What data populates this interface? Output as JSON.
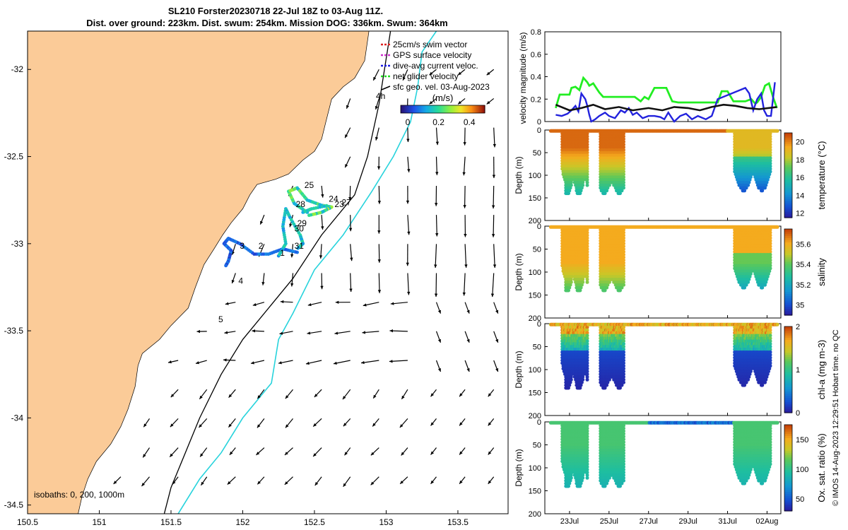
{
  "title": {
    "line1": "SL210 Forster20230718 22-Jul 18Z to 03-Aug 11Z.",
    "line2": "Dist. over ground: 223km. Dist. swum: 254km. Mission DOG: 336km. Swum: 364km"
  },
  "credit": "© IMOS 14-Aug-2023 12:29:51 Hobart time. no QC",
  "colors": {
    "land": "#fbcb98",
    "sea": "#ffffff",
    "isobath_200": "#000000",
    "isobath_1000": "#27d3dc",
    "arrow": "#000000",
    "gps_legend": "#cc33cc",
    "dive_avg_legend": "#1c1ce0",
    "net_legend": "#22dd22",
    "swim_legend": "#dd2222",
    "line_green": "#22ee22",
    "line_blue": "#2222dd",
    "line_black": "#111111"
  },
  "map": {
    "x_ticks": [
      "150.5",
      "151",
      "151.5",
      "152",
      "152.5",
      "153",
      "153.5"
    ],
    "y_ticks": [
      "-32",
      "-32.5",
      "-33",
      "-33.5",
      "-34",
      "-34.5"
    ],
    "legend": [
      {
        "label": "25cm/s swim vector",
        "icon": "red-dash"
      },
      {
        "label": "GPS surface velocity",
        "icon": "magenta-dash"
      },
      {
        "label": "dive-avg current veloc.",
        "icon": "blue-dash"
      },
      {
        "label": "net glider velocity",
        "icon": "green-dash"
      },
      {
        "label": "sfc geo. vel. 03-Aug-2023",
        "icon": "black-arrow"
      }
    ],
    "colorbar_unit": "(m/s)",
    "colorbar_ticks": [
      "0",
      "0.2",
      "0.4"
    ],
    "label_4h": "4h",
    "isobaths_text": "isobaths: 0, 200, 1000m",
    "track_day_labels": [
      "1",
      "2",
      "3",
      "4",
      "5",
      "25",
      "27",
      "28",
      "29",
      "30",
      "31",
      "23",
      "24"
    ]
  },
  "panels": {
    "velocity": {
      "ylabel": "velocity magnitude (m/s)",
      "y_ticks": [
        "0",
        "0.2",
        "0.4",
        "0.6",
        "0.8"
      ]
    },
    "temperature": {
      "ylabel": "Depth (m)",
      "cbar_label": "temperature (°C)",
      "cbar_ticks": [
        "12",
        "14",
        "16",
        "18",
        "20"
      ],
      "y_ticks": [
        "0",
        "50",
        "100",
        "150",
        "200"
      ]
    },
    "salinity": {
      "ylabel": "Depth (m)",
      "cbar_label": "salinity",
      "cbar_ticks": [
        "35",
        "35.2",
        "35.4",
        "35.6"
      ],
      "y_ticks": [
        "0",
        "50",
        "100",
        "150",
        "200"
      ]
    },
    "chla": {
      "ylabel": "Depth (m)",
      "cbar_label": "chl-a (mg m-3)",
      "cbar_ticks": [
        "0",
        "1",
        "2"
      ],
      "y_ticks": [
        "0",
        "50",
        "100",
        "150",
        "200"
      ]
    },
    "oxygen": {
      "ylabel": "Depth (m)",
      "cbar_label": "Ox. sat. ratio (%)",
      "cbar_ticks": [
        "50",
        "100",
        "150"
      ],
      "y_ticks": [
        "0",
        "50",
        "100",
        "150",
        "200"
      ]
    },
    "x_ticks": [
      "23Jul",
      "25Jul",
      "27Jul",
      "29Jul",
      "31Jul",
      "02Aug"
    ]
  },
  "chart_data": [
    {
      "type": "map",
      "description_kind": "glider track map with surface geostrophic velocity arrows",
      "xlim": [
        150.5,
        153.85
      ],
      "ylim": [
        -34.55,
        -31.78
      ],
      "x_ticks": [
        150.5,
        151,
        151.5,
        152,
        152.5,
        153,
        153.5
      ],
      "y_ticks": [
        -32,
        -32.5,
        -33,
        -33.5,
        -34,
        -34.5
      ],
      "isobaths_m": [
        0,
        200,
        1000
      ]
    },
    {
      "type": "line",
      "ylim": [
        0,
        0.8
      ],
      "x_days_since_jul22": [
        0,
        11.5
      ],
      "series": [
        {
          "name": "net glider velocity",
          "values": [
            [
              0.3,
              0.12
            ],
            [
              0.5,
              0.24
            ],
            [
              1.0,
              0.24
            ],
            [
              1.1,
              0.3
            ],
            [
              1.3,
              0.31
            ],
            [
              1.5,
              0.28
            ],
            [
              1.7,
              0.39
            ],
            [
              1.9,
              0.35
            ],
            [
              2.0,
              0.32
            ],
            [
              2.2,
              0.34
            ],
            [
              2.5,
              0.26
            ],
            [
              2.7,
              0.22
            ],
            [
              3.0,
              0.22
            ],
            [
              3.4,
              0.22
            ],
            [
              3.7,
              0.22
            ],
            [
              4.0,
              0.22
            ],
            [
              4.3,
              0.22
            ],
            [
              4.6,
              0.18
            ],
            [
              4.8,
              0.22
            ],
            [
              5.0,
              0.2
            ],
            [
              5.3,
              0.3
            ],
            [
              5.6,
              0.3
            ],
            [
              5.9,
              0.3
            ],
            [
              6.2,
              0.18
            ],
            [
              6.5,
              0.17
            ],
            [
              6.8,
              0.17
            ],
            [
              7.0,
              0.17
            ],
            [
              8.5,
              0.17
            ],
            [
              8.7,
              0.27
            ],
            [
              9.0,
              0.27
            ],
            [
              9.3,
              0.18
            ],
            [
              9.6,
              0.18
            ],
            [
              9.9,
              0.18
            ],
            [
              10.2,
              0.2
            ],
            [
              10.4,
              0.16
            ],
            [
              10.5,
              0.17
            ],
            [
              10.7,
              0.22
            ],
            [
              10.9,
              0.32
            ],
            [
              11.1,
              0.34
            ],
            [
              11.3,
              0.22
            ],
            [
              11.5,
              0.12
            ]
          ]
        },
        {
          "name": "dive-avg current veloc.",
          "values": [
            [
              0.3,
              0.06
            ],
            [
              0.6,
              0.05
            ],
            [
              0.9,
              0.07
            ],
            [
              1.1,
              0.1
            ],
            [
              1.3,
              0.14
            ],
            [
              1.45,
              0.09
            ],
            [
              1.6,
              0.25
            ],
            [
              1.8,
              0.2
            ],
            [
              1.9,
              0.14
            ],
            [
              2.0,
              0.06
            ],
            [
              2.1,
              0.0
            ],
            [
              2.3,
              0.02
            ],
            [
              2.5,
              0.05
            ],
            [
              2.8,
              0.08
            ],
            [
              3.0,
              0.05
            ],
            [
              3.3,
              0.03
            ],
            [
              3.6,
              0.1
            ],
            [
              3.8,
              0.08
            ],
            [
              4.0,
              0.12
            ],
            [
              4.2,
              0.06
            ],
            [
              4.4,
              0.08
            ],
            [
              4.7,
              0.03
            ],
            [
              5.0,
              0.05
            ],
            [
              5.3,
              0.05
            ],
            [
              5.6,
              0.04
            ],
            [
              5.8,
              0.02
            ],
            [
              6.0,
              0.08
            ],
            [
              6.3,
              0.0
            ],
            [
              6.6,
              0.05
            ],
            [
              6.9,
              0.07
            ],
            [
              7.2,
              0.02
            ],
            [
              7.5,
              0.05
            ],
            [
              7.9,
              0.02
            ],
            [
              8.2,
              0.05
            ],
            [
              8.5,
              0.2
            ],
            [
              9.9,
              0.3
            ],
            [
              10.1,
              0.25
            ],
            [
              10.3,
              0.1
            ],
            [
              10.5,
              0.2
            ],
            [
              10.7,
              0.25
            ],
            [
              10.85,
              0.1
            ],
            [
              11.0,
              0.05
            ],
            [
              11.2,
              0.05
            ],
            [
              11.4,
              0.35
            ]
          ]
        },
        {
          "name": "sfc geo. vel.",
          "values": [
            [
              0.3,
              0.15
            ],
            [
              1.0,
              0.1
            ],
            [
              1.6,
              0.12
            ],
            [
              2.2,
              0.15
            ],
            [
              2.8,
              0.11
            ],
            [
              3.5,
              0.13
            ],
            [
              4.2,
              0.1
            ],
            [
              5.0,
              0.12
            ],
            [
              5.7,
              0.1
            ],
            [
              6.3,
              0.13
            ],
            [
              7.0,
              0.12
            ],
            [
              7.6,
              0.1
            ],
            [
              8.2,
              0.13
            ],
            [
              8.8,
              0.15
            ],
            [
              9.4,
              0.14
            ],
            [
              10.0,
              0.12
            ],
            [
              10.6,
              0.11
            ],
            [
              11.5,
              0.13
            ]
          ]
        }
      ]
    },
    {
      "type": "heatmap",
      "name": "temperature",
      "clim": [
        11.5,
        21
      ],
      "ylim_depth": [
        0,
        200
      ],
      "sections": [
        [
          0.1,
          1.45
        ],
        [
          1.45,
          1.9
        ],
        [
          2.25,
          3.4
        ],
        [
          3.4,
          4.4
        ],
        [
          4.45,
          4.9
        ],
        [
          9.3,
          10.4
        ],
        [
          10.4,
          11.5
        ]
      ]
    },
    {
      "type": "heatmap",
      "name": "salinity",
      "clim": [
        34.9,
        35.75
      ],
      "ylim_depth": [
        0,
        200
      ]
    },
    {
      "type": "heatmap",
      "name": "chl-a",
      "clim": [
        0,
        2
      ],
      "ylim_depth": [
        0,
        200
      ]
    },
    {
      "type": "heatmap",
      "name": "oxygen saturation",
      "clim": [
        30,
        175
      ],
      "ylim_depth": [
        0,
        200
      ]
    }
  ]
}
